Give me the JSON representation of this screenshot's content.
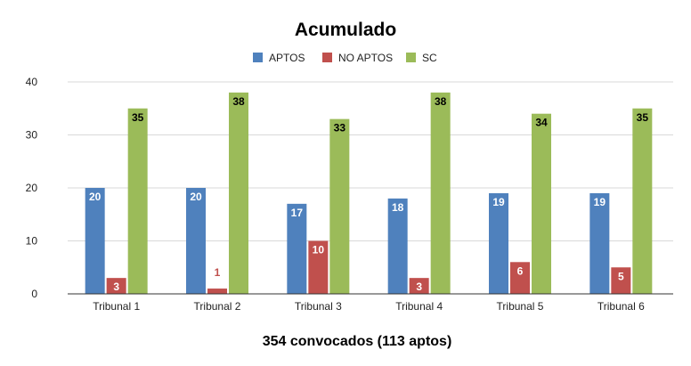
{
  "chart_data": {
    "type": "bar",
    "title": "Acumulado",
    "xlabel": "354 convocados (113 aptos)",
    "ylabel": "",
    "ylim": [
      0,
      40
    ],
    "yticks": [
      0,
      10,
      20,
      30,
      40
    ],
    "grid": true,
    "legend_position": "top",
    "categories": [
      "Tribunal 1",
      "Tribunal 2",
      "Tribunal 3",
      "Tribunal 4",
      "Tribunal 5",
      "Tribunal 6"
    ],
    "series": [
      {
        "name": "APTOS",
        "color": "#4f81bd",
        "values": [
          20,
          20,
          17,
          18,
          19,
          19
        ]
      },
      {
        "name": "NO APTOS",
        "color": "#c0504d",
        "values": [
          3,
          1,
          10,
          3,
          6,
          5
        ]
      },
      {
        "name": "SC",
        "color": "#9bbb59",
        "values": [
          35,
          38,
          33,
          38,
          34,
          35
        ]
      }
    ]
  }
}
